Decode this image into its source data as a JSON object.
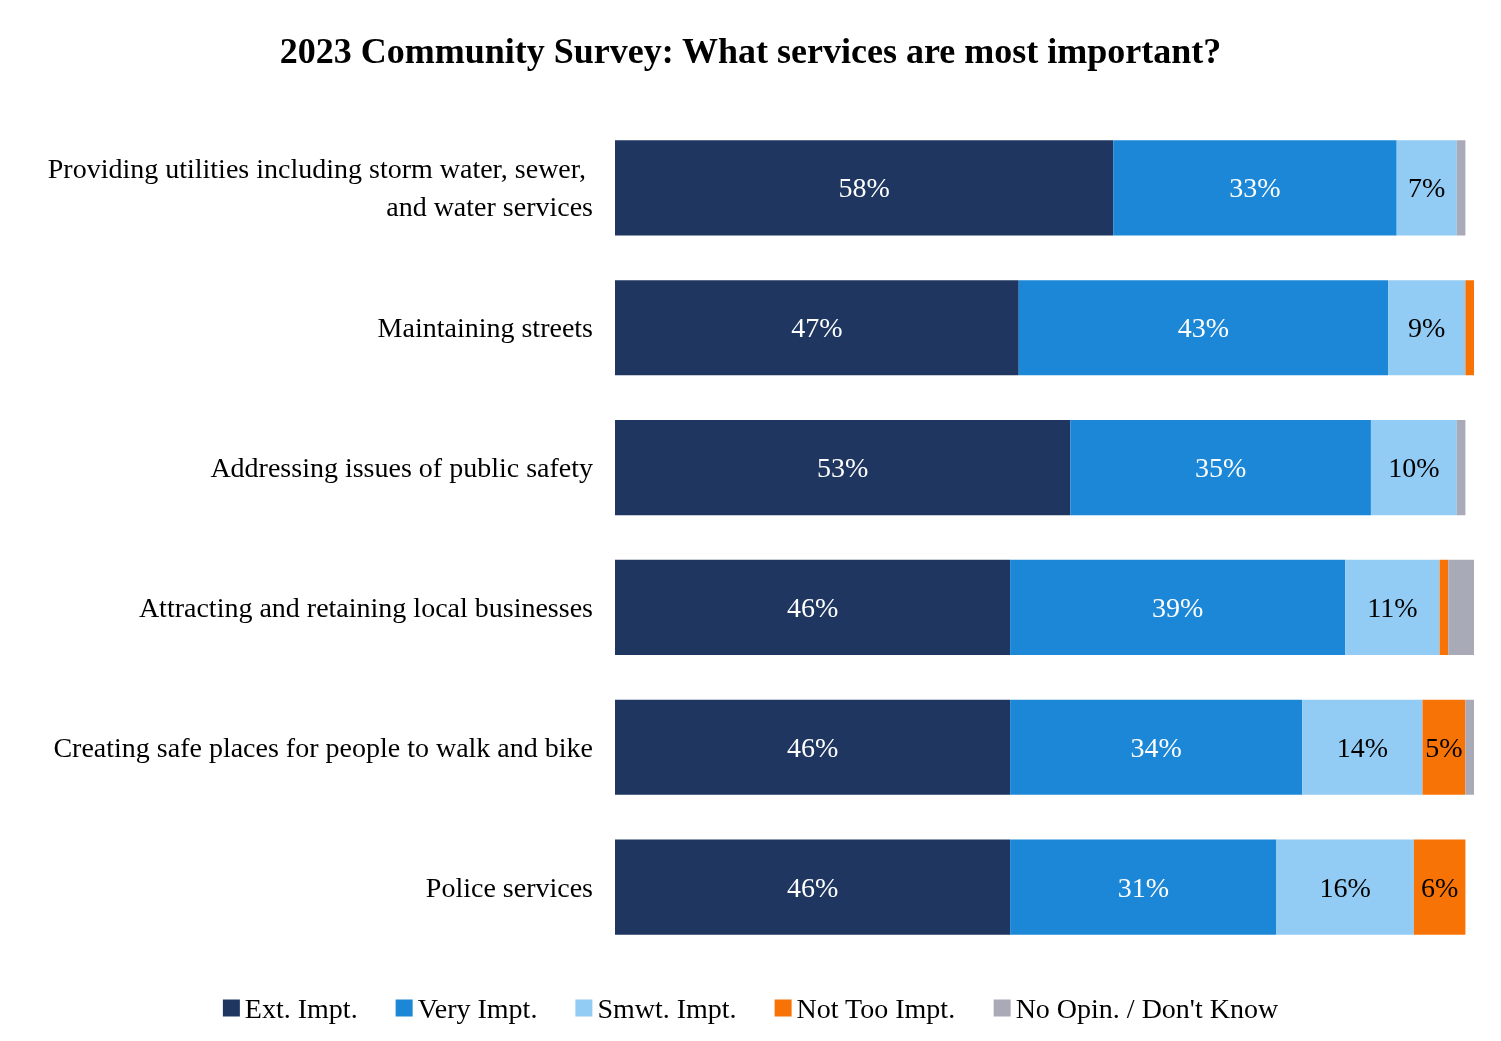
{
  "chart_data": {
    "type": "bar",
    "orientation": "horizontal",
    "stacked": true,
    "title": "2023 Community Survey: What services are most important?",
    "categories": [
      "Providing utilities including storm water, sewer, and water services",
      "Maintaining streets",
      "Addressing issues of public safety",
      "Attracting and retaining local businesses",
      "Creating safe places for people to walk and bike",
      "Police services"
    ],
    "series": [
      {
        "name": "Ext. Impt.",
        "color": "#1f3660",
        "values": [
          58,
          47,
          53,
          46,
          46,
          46
        ],
        "value_labels": [
          "58%",
          "47%",
          "53%",
          "46%",
          "46%",
          "46%"
        ]
      },
      {
        "name": "Very Impt.",
        "color": "#1b87d6",
        "values": [
          33,
          43,
          35,
          39,
          34,
          31
        ],
        "value_labels": [
          "33%",
          "43%",
          "35%",
          "39%",
          "34%",
          "31%"
        ]
      },
      {
        "name": "Smwt. Impt.",
        "color": "#92cbf3",
        "values": [
          7,
          9,
          10,
          11,
          14,
          16
        ],
        "value_labels": [
          "7%",
          "9%",
          "10%",
          "11%",
          "14%",
          "16%"
        ]
      },
      {
        "name": "Not Too Impt.",
        "color": "#f87306",
        "values": [
          null,
          1,
          null,
          1,
          5,
          6
        ],
        "value_labels": [
          null,
          null,
          null,
          null,
          "5%",
          "6%"
        ]
      },
      {
        "name": "No Opin. / Don't Know",
        "color": "#a9aab8",
        "values": [
          1,
          null,
          1,
          3,
          1,
          null
        ],
        "value_labels": [
          null,
          null,
          null,
          null,
          null,
          null
        ]
      }
    ],
    "legend": "bottom",
    "grid": false
  }
}
